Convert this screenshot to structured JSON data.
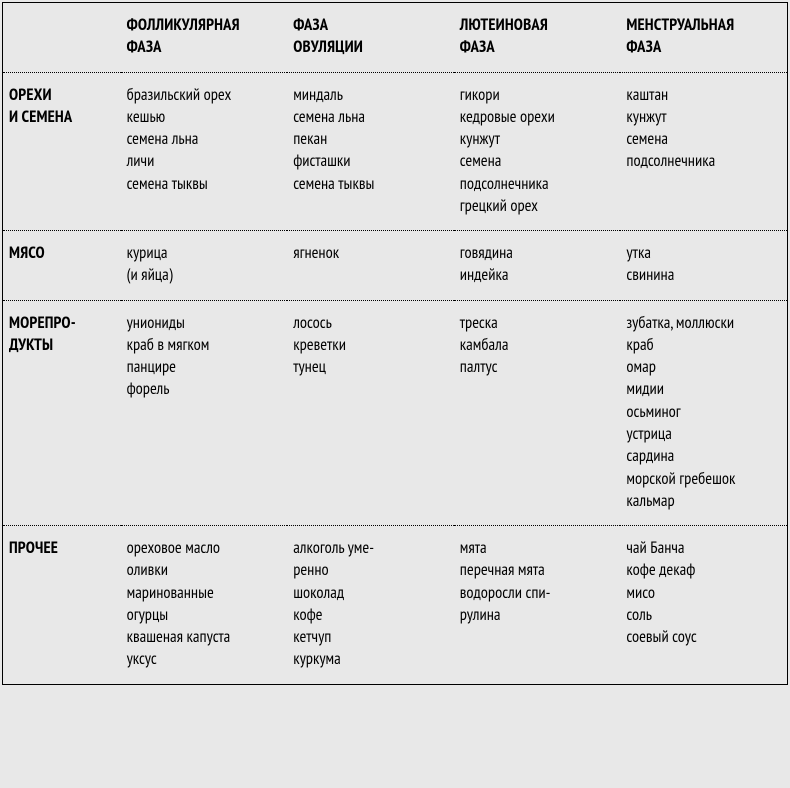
{
  "columns": [
    {
      "id": "label",
      "header_lines": [
        "",
        ""
      ]
    },
    {
      "id": "follicular",
      "header_lines": [
        "ФОЛЛИКУЛЯРНАЯ",
        "ФАЗА"
      ]
    },
    {
      "id": "ovulation",
      "header_lines": [
        "ФАЗА",
        "ОВУЛЯЦИИ"
      ]
    },
    {
      "id": "luteal",
      "header_lines": [
        "ЛЮТЕИНОВАЯ",
        "ФАЗА"
      ]
    },
    {
      "id": "menstrual",
      "header_lines": [
        "МЕНСТРУАЛЬНАЯ",
        "ФАЗА"
      ]
    }
  ],
  "rows": [
    {
      "label_lines": [
        "ОРЕХИ",
        "И СЕМЕНА"
      ],
      "follicular": [
        "бразильский орех",
        "кешью",
        "семена льна",
        "личи",
        "семена тыквы"
      ],
      "ovulation": [
        "миндаль",
        "семена льна",
        "пекан",
        "фисташки",
        "семена тыквы"
      ],
      "luteal": [
        "гикори",
        "кедровые орехи",
        "кунжут",
        "семена",
        "подсолнечника",
        "грецкий орех"
      ],
      "menstrual": [
        "каштан",
        "кунжут",
        "семена",
        "подсолнечника"
      ]
    },
    {
      "label_lines": [
        "МЯСО"
      ],
      "follicular": [
        "курица",
        "(и яйца)"
      ],
      "ovulation": [
        "ягненок"
      ],
      "luteal": [
        "говядина",
        "индейка"
      ],
      "menstrual": [
        "утка",
        "свинина"
      ]
    },
    {
      "label_lines": [
        "МОРЕПРО-",
        "ДУКТЫ"
      ],
      "follicular": [
        "униониды",
        "краб в мягком",
        "панцире",
        "форель"
      ],
      "ovulation": [
        "лосось",
        "креветки",
        "тунец"
      ],
      "luteal": [
        "треска",
        "камбала",
        "палтус"
      ],
      "menstrual": [
        "зубатка, моллюски",
        "краб",
        "омар",
        "мидии",
        "осьминог",
        "устрица",
        "сардина",
        "морской гребешок",
        "кальмар"
      ]
    },
    {
      "label_lines": [
        "ПРОЧЕЕ"
      ],
      "follicular": [
        "ореховое масло",
        "оливки",
        "маринованные",
        "огурцы",
        "квашеная капуста",
        "уксус"
      ],
      "ovulation": [
        "алкоголь уме-",
        "ренно",
        "шоколад",
        "кофе",
        "кетчуп",
        "куркума"
      ],
      "luteal": [
        "мята",
        "перечная мята",
        "водоросли спи-",
        "рулина"
      ],
      "menstrual": [
        "чай Банча",
        "кофе декаф",
        "мисо",
        "соль",
        "соевый соус"
      ]
    }
  ],
  "style": {
    "background_color": "#e8e8e8",
    "border_color": "#000000",
    "text_color": "#000000",
    "font_size_pt": 12,
    "header_weight": 700,
    "body_weight": 400
  }
}
